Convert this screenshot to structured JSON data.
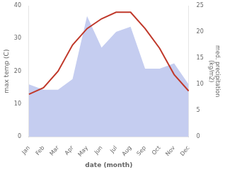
{
  "chart_data": {
    "type": "line",
    "xlabel": "date (month)",
    "ylabel": "max temp (C)",
    "y2label": "med. precipitation\n(kg/m2)",
    "categories": [
      "Jan",
      "Feb",
      "Mar",
      "Apr",
      "May",
      "Jun",
      "Jul",
      "Aug",
      "Sep",
      "Oct",
      "Nov",
      "Dec"
    ],
    "series": [
      {
        "type": "line",
        "color": "#c0392b",
        "values": [
          13,
          15,
          20,
          28,
          33,
          36,
          38,
          38,
          33,
          27,
          19,
          14
        ]
      },
      {
        "type": "area",
        "color": "#c5cdf0",
        "axis": "y2",
        "values": [
          10,
          9,
          9,
          11,
          23,
          17,
          20,
          21,
          13,
          13,
          14,
          10
        ]
      }
    ],
    "ylim": [
      0,
      40
    ],
    "yticks": [
      0,
      10,
      20,
      30,
      40
    ],
    "y2lim": [
      0,
      25
    ],
    "y2ticks": [
      0,
      5,
      10,
      15,
      20,
      25
    ],
    "grid": false
  }
}
